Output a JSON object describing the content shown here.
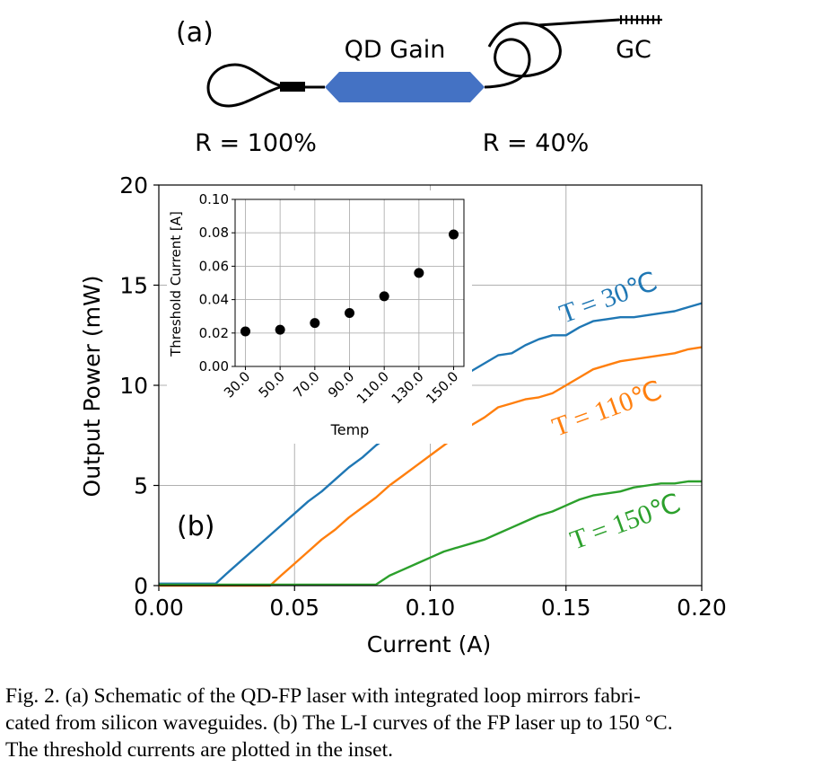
{
  "panel_a": {
    "label": "(a)",
    "gain_label": "QD Gain",
    "gc_label": "GC",
    "left_reflectivity": "R = 100%",
    "right_reflectivity": "R = 40%",
    "gain_color": "#4472c4"
  },
  "chart_data": [
    {
      "id": "main",
      "type": "line",
      "panel_label": "(b)",
      "xlabel": "Current (A)",
      "ylabel": "Output Power (mW)",
      "xlim": [
        0,
        0.2
      ],
      "ylim": [
        0,
        20
      ],
      "xticks": [
        "0.00",
        "0.05",
        "0.10",
        "0.15",
        "0.20"
      ],
      "yticks": [
        "0",
        "5",
        "10",
        "15",
        "20"
      ],
      "grid": true,
      "series": [
        {
          "name": "T = 30℃",
          "color": "#1f77b4",
          "x": [
            0,
            0.021,
            0.025,
            0.03,
            0.035,
            0.04,
            0.045,
            0.05,
            0.055,
            0.06,
            0.065,
            0.07,
            0.075,
            0.08,
            0.085,
            0.09,
            0.095,
            0.1,
            0.105,
            0.11,
            0.115,
            0.12,
            0.125,
            0.13,
            0.135,
            0.14,
            0.145,
            0.15,
            0.155,
            0.16,
            0.165,
            0.17,
            0.175,
            0.18,
            0.185,
            0.19,
            0.195,
            0.2
          ],
          "y": [
            0.1,
            0.1,
            0.6,
            1.2,
            1.8,
            2.4,
            3.0,
            3.6,
            4.2,
            4.7,
            5.3,
            5.9,
            6.4,
            7.0,
            7.5,
            8.1,
            8.6,
            9.1,
            9.6,
            10.1,
            10.7,
            11.1,
            11.5,
            11.6,
            12.0,
            12.3,
            12.5,
            12.5,
            12.9,
            13.2,
            13.3,
            13.4,
            13.4,
            13.5,
            13.6,
            13.7,
            13.9,
            14.1
          ]
        },
        {
          "name": "T = 110℃",
          "color": "#ff7f0e",
          "x": [
            0,
            0.041,
            0.045,
            0.05,
            0.055,
            0.06,
            0.065,
            0.07,
            0.075,
            0.08,
            0.085,
            0.09,
            0.095,
            0.1,
            0.105,
            0.11,
            0.115,
            0.12,
            0.125,
            0.13,
            0.135,
            0.14,
            0.145,
            0.15,
            0.155,
            0.16,
            0.165,
            0.17,
            0.175,
            0.18,
            0.185,
            0.19,
            0.195,
            0.2
          ],
          "y": [
            0.0,
            0.0,
            0.5,
            1.1,
            1.7,
            2.3,
            2.8,
            3.4,
            3.9,
            4.4,
            5.0,
            5.5,
            6.0,
            6.5,
            7.0,
            7.5,
            8.0,
            8.4,
            8.9,
            9.1,
            9.3,
            9.4,
            9.6,
            10.0,
            10.4,
            10.8,
            11.0,
            11.2,
            11.3,
            11.4,
            11.5,
            11.6,
            11.8,
            11.9
          ]
        },
        {
          "name": "T = 150℃",
          "color": "#2ca02c",
          "x": [
            0,
            0.08,
            0.085,
            0.09,
            0.095,
            0.1,
            0.105,
            0.11,
            0.115,
            0.12,
            0.125,
            0.13,
            0.135,
            0.14,
            0.145,
            0.15,
            0.155,
            0.16,
            0.165,
            0.17,
            0.175,
            0.18,
            0.185,
            0.19,
            0.195,
            0.2
          ],
          "y": [
            0.05,
            0.05,
            0.5,
            0.8,
            1.1,
            1.4,
            1.7,
            1.9,
            2.1,
            2.3,
            2.6,
            2.9,
            3.2,
            3.5,
            3.7,
            4.0,
            4.3,
            4.5,
            4.6,
            4.7,
            4.9,
            5.0,
            5.1,
            5.1,
            5.2,
            5.2
          ]
        }
      ]
    },
    {
      "id": "inset",
      "type": "scatter",
      "xlabel": "Temp",
      "ylabel": "Threshold Current [A]",
      "categories": [
        "30.0",
        "50.0",
        "70.0",
        "90.0",
        "110.0",
        "130.0",
        "150.0"
      ],
      "values": [
        0.021,
        0.022,
        0.026,
        0.032,
        0.042,
        0.056,
        0.079
      ],
      "ylim": [
        0,
        0.1
      ],
      "yticks": [
        "0.00",
        "0.02",
        "0.04",
        "0.06",
        "0.08",
        "0.10"
      ],
      "grid": true,
      "marker_color": "#000000"
    }
  ],
  "caption": {
    "line1": "Fig. 2.    (a) Schematic of the QD-FP laser with integrated loop mirrors fabri-",
    "line2": "cated from silicon waveguides. (b) The L-I curves of the FP laser up to 150 °C.",
    "line3": "The threshold currents are plotted in the inset."
  }
}
